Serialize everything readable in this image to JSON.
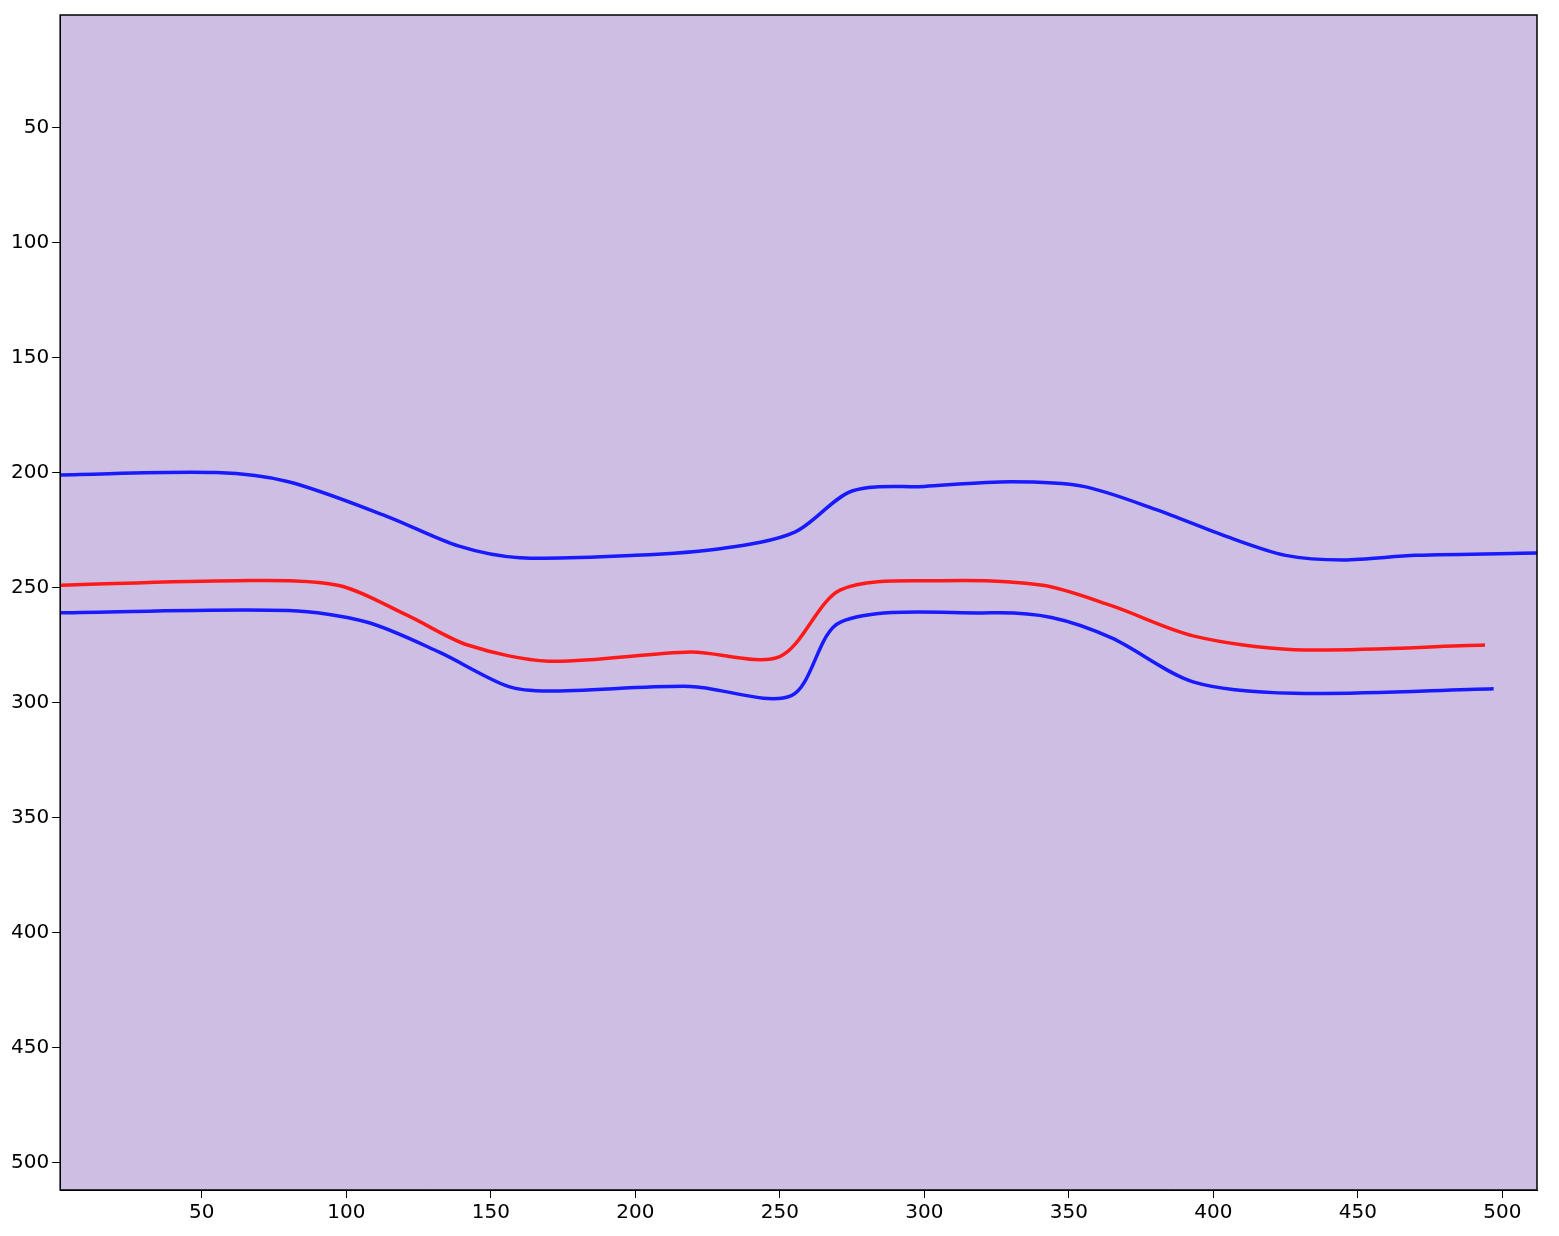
{
  "chart_data": {
    "type": "line",
    "xlim": [
      1,
      512
    ],
    "ylim": [
      512,
      1
    ],
    "xticks": [
      50,
      100,
      150,
      200,
      250,
      300,
      350,
      400,
      450,
      500
    ],
    "yticks": [
      50,
      100,
      150,
      200,
      250,
      300,
      350,
      400,
      450,
      500
    ],
    "grid": false,
    "series": [
      {
        "color": "#1a1aff",
        "x": [
          1,
          55,
          80,
          114,
          139,
          160,
          200,
          230,
          255,
          275,
          300,
          330,
          355,
          380,
          405,
          425,
          445,
          470,
          512
        ],
        "values": [
          201,
          200,
          204,
          219,
          232,
          237,
          236,
          233,
          226,
          208,
          206,
          204,
          206,
          216,
          228,
          236,
          238,
          236,
          235
        ]
      },
      {
        "color": "#ff1a1a",
        "x": [
          1,
          62,
          97,
          121,
          142,
          170,
          219,
          250,
          271,
          306,
          341,
          365,
          393,
          428,
          494
        ],
        "values": [
          249,
          247,
          249,
          262,
          275,
          282,
          278,
          280,
          251,
          247,
          249,
          258,
          271,
          277,
          275
        ]
      },
      {
        "color": "#1a1aff",
        "x": [
          1,
          80,
          107,
          132,
          156,
          170,
          219,
          254,
          271,
          323,
          344,
          365,
          393,
          428,
          497
        ],
        "values": [
          261,
          260,
          265,
          278,
          293,
          295,
          293,
          297,
          265,
          261,
          263,
          272,
          291,
          296,
          294
        ]
      }
    ]
  }
}
